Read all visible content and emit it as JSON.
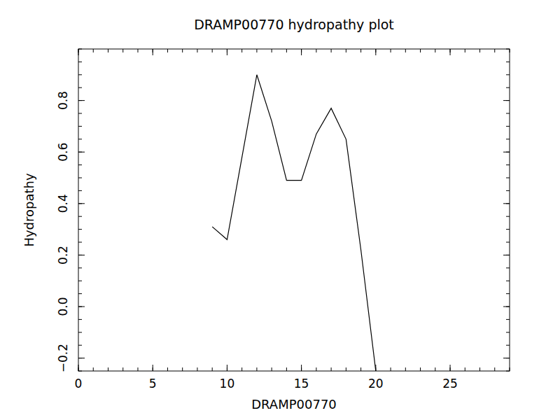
{
  "chart_data": {
    "type": "line",
    "title": "DRAMP00770 hydropathy plot",
    "x_label": "DRAMP00770",
    "y_label": "Hydropathy",
    "x": [
      9,
      10,
      11,
      12,
      13,
      14,
      15,
      16,
      17,
      18,
      19,
      20
    ],
    "values": [
      0.31,
      0.26,
      0.58,
      0.9,
      0.72,
      0.49,
      0.49,
      0.67,
      0.77,
      0.65,
      0.22,
      -0.25
    ],
    "color": "#000000",
    "xlim": [
      0,
      29
    ],
    "xticks": [
      0,
      5,
      10,
      15,
      20,
      25
    ],
    "ylim": [
      -0.25,
      1.0
    ],
    "yticks": [
      {
        "value": -0.2,
        "label": "−0.2"
      },
      {
        "value": 0,
        "label": "0.0"
      },
      0.2,
      0.4,
      0.6,
      0.8
    ],
    "grid": false
  }
}
